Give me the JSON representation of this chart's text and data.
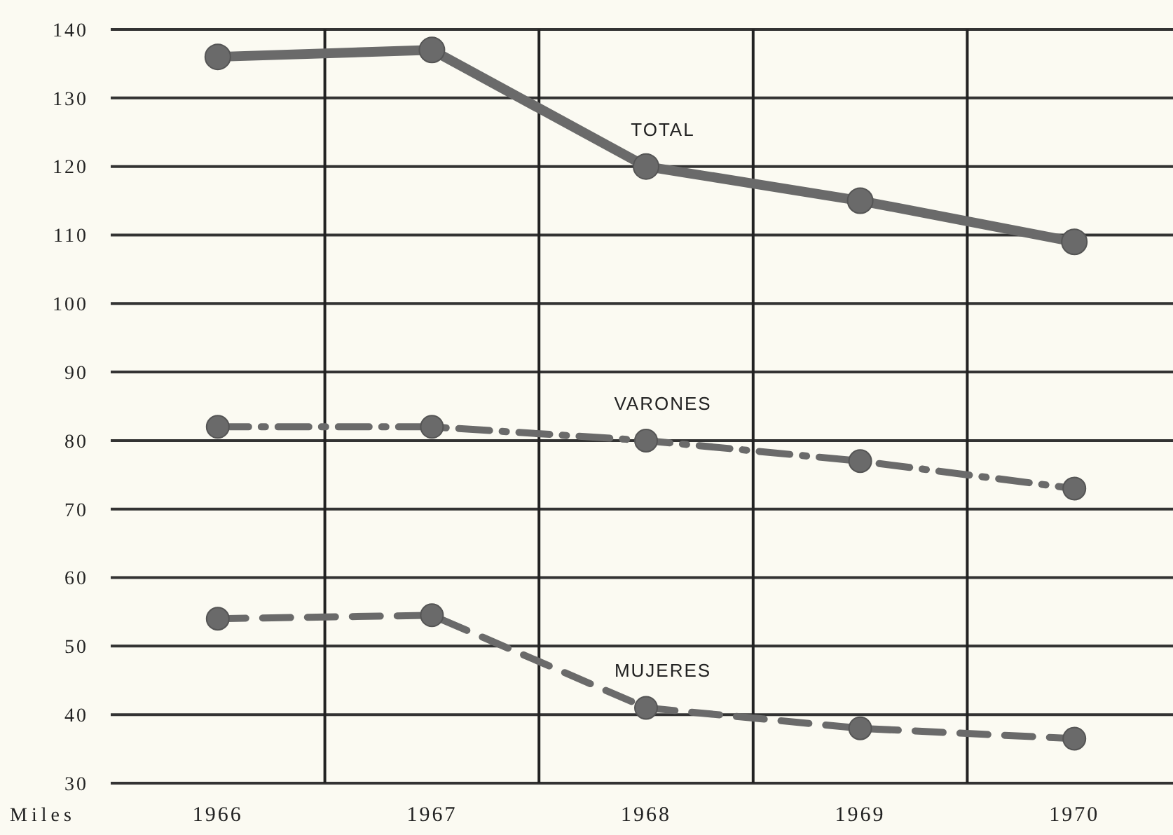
{
  "chart_data": {
    "type": "line",
    "ylabel": "Miles",
    "categories": [
      "1966",
      "1967",
      "1968",
      "1969",
      "1970"
    ],
    "series": [
      {
        "name": "TOTAL",
        "color": "#6a6a6a",
        "values": [
          136,
          137,
          120,
          115,
          109
        ],
        "line_style": "solid"
      },
      {
        "name": "VARONES",
        "color": "#6a6a6a",
        "values": [
          82,
          82,
          80,
          77,
          73
        ],
        "line_style": "dashdot"
      },
      {
        "name": "MUJERES",
        "color": "#6a6a6a",
        "values": [
          54,
          54.5,
          41,
          38,
          36.5
        ],
        "line_style": "dashed"
      }
    ],
    "ylim": [
      30,
      140
    ],
    "yticks": [
      30,
      40,
      50,
      60,
      70,
      80,
      90,
      100,
      110,
      120,
      130,
      140
    ],
    "grid": true,
    "marker": "circle"
  }
}
